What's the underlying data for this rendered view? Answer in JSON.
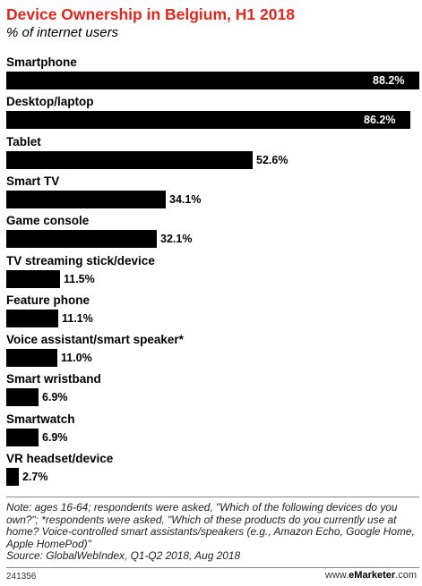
{
  "header": {
    "title": "Device Ownership in Belgium, H1 2018",
    "subtitle": "% of internet users"
  },
  "chart_data": {
    "type": "bar",
    "orientation": "horizontal",
    "categories": [
      "Smartphone",
      "Desktop/laptop",
      "Tablet",
      "Smart TV",
      "Game console",
      "TV streaming stick/device",
      "Feature phone",
      "Voice assistant/smart speaker*",
      "Smart wristband",
      "Smartwatch",
      "VR headset/device"
    ],
    "values": [
      88.2,
      86.2,
      52.6,
      34.1,
      32.1,
      11.5,
      11.1,
      11.0,
      6.9,
      6.9,
      2.7
    ],
    "value_labels": [
      "88.2%",
      "86.2%",
      "52.6%",
      "34.1%",
      "32.1%",
      "11.5%",
      "11.1%",
      "11.0%",
      "6.9%",
      "6.9%",
      "2.7%"
    ],
    "xlim": [
      0,
      88.2
    ],
    "grid": false,
    "bar_color": "#000000",
    "title": "Device Ownership in Belgium, H1 2018",
    "subtitle": "% of internet users"
  },
  "footer": {
    "note": "Note: ages 16-64; respondents were asked, \"Which of the following devices do you own?\"; *respondents were asked, \"Which of these products do you currently use at home? Voice-controlled smart assistants/speakers (e.g., Amazon Echo, Google Home, Apple HomePod)\"",
    "source": "Source: GlobalWebIndex, Q1-Q2 2018, Aug 2018",
    "id": "241356",
    "brand_prefix": "www.",
    "brand_name": "eMarketer",
    "brand_suffix": ".com"
  },
  "colors": {
    "title": "#e2261d",
    "bars": "#000000",
    "rule": "#888888"
  }
}
